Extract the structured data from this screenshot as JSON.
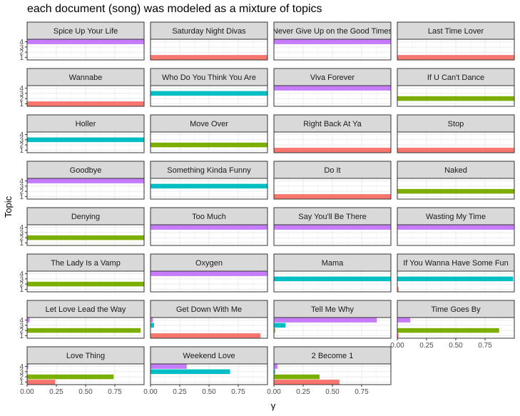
{
  "title": "each document (song) was modeled as a mixture of topics",
  "chart_data": {
    "type": "bar",
    "orientation": "horizontal",
    "facet_layout": "wrap-4-columns",
    "xlabel": "γ",
    "ylabel": "Topic",
    "xlim": [
      0,
      1
    ],
    "x_ticks": [
      "0.00",
      "0.25",
      "0.50",
      "0.75"
    ],
    "x_tick_values": [
      0,
      0.25,
      0.5,
      0.75
    ],
    "topics": [
      "1",
      "2",
      "3",
      "4"
    ],
    "topic_colors": [
      "#F8766D",
      "#7CAE00",
      "#00BFC4",
      "#C77CFF"
    ],
    "grid": true,
    "legend": "none",
    "facets": [
      {
        "name": "Spice Up Your Life",
        "values": [
          0.001,
          0.001,
          0.001,
          0.997
        ]
      },
      {
        "name": "Saturday Night Divas",
        "values": [
          0.997,
          0.001,
          0.001,
          0.001
        ]
      },
      {
        "name": "Never Give Up on the Good Times",
        "values": [
          0.001,
          0.001,
          0.001,
          0.997
        ]
      },
      {
        "name": "Last Time Lover",
        "values": [
          0.997,
          0.001,
          0.001,
          0.001
        ]
      },
      {
        "name": "Wannabe",
        "values": [
          0.997,
          0.001,
          0.001,
          0.001
        ]
      },
      {
        "name": "Who Do You Think You Are",
        "values": [
          0.001,
          0.001,
          0.997,
          0.001
        ]
      },
      {
        "name": "Viva Forever",
        "values": [
          0.001,
          0.001,
          0.001,
          0.997
        ]
      },
      {
        "name": "If U Can't Dance",
        "values": [
          0.001,
          0.997,
          0.001,
          0.001
        ]
      },
      {
        "name": "Holler",
        "values": [
          0.001,
          0.001,
          0.997,
          0.001
        ]
      },
      {
        "name": "Move Over",
        "values": [
          0.001,
          0.997,
          0.001,
          0.001
        ]
      },
      {
        "name": "Right Back At Ya",
        "values": [
          0.997,
          0.001,
          0.001,
          0.001
        ]
      },
      {
        "name": "Stop",
        "values": [
          0.997,
          0.001,
          0.001,
          0.001
        ]
      },
      {
        "name": "Goodbye",
        "values": [
          0.001,
          0.001,
          0.001,
          0.997
        ]
      },
      {
        "name": "Something Kinda Funny",
        "values": [
          0.001,
          0.001,
          0.997,
          0.001
        ]
      },
      {
        "name": "Do It",
        "values": [
          0.997,
          0.001,
          0.001,
          0.001
        ]
      },
      {
        "name": "Naked",
        "values": [
          0.001,
          0.997,
          0.001,
          0.001
        ]
      },
      {
        "name": "Denying",
        "values": [
          0.001,
          0.997,
          0.001,
          0.001
        ]
      },
      {
        "name": "Too Much",
        "values": [
          0.001,
          0.001,
          0.001,
          0.997
        ]
      },
      {
        "name": "Say You'll Be There",
        "values": [
          0.001,
          0.001,
          0.001,
          0.997
        ]
      },
      {
        "name": "Wasting My Time",
        "values": [
          0.001,
          0.001,
          0.001,
          0.997
        ]
      },
      {
        "name": "The Lady Is a Vamp",
        "values": [
          0.001,
          0.997,
          0.001,
          0.001
        ]
      },
      {
        "name": "Oxygen",
        "values": [
          0.001,
          0.001,
          0.001,
          0.997
        ]
      },
      {
        "name": "Mama",
        "values": [
          0.001,
          0.001,
          0.997,
          0.001
        ]
      },
      {
        "name": "If You Wanna Have Some Fun",
        "values": [
          0.01,
          0.001,
          0.99,
          0.001
        ]
      },
      {
        "name": "Let Love Lead the Way",
        "values": [
          0.001,
          0.97,
          0.001,
          0.02
        ]
      },
      {
        "name": "Get Down With Me",
        "values": [
          0.94,
          0.001,
          0.03,
          0.02
        ]
      },
      {
        "name": "Tell Me Why",
        "values": [
          0.001,
          0.01,
          0.1,
          0.88
        ]
      },
      {
        "name": "Time Goes By",
        "values": [
          0.01,
          0.87,
          0.001,
          0.11
        ]
      },
      {
        "name": "Love Thing",
        "values": [
          0.24,
          0.74,
          0.001,
          0.01
        ]
      },
      {
        "name": "Weekend Love",
        "values": [
          0.001,
          0.001,
          0.68,
          0.31
        ]
      },
      {
        "name": "2 Become 1",
        "values": [
          0.56,
          0.39,
          0.01,
          0.03
        ]
      }
    ]
  }
}
